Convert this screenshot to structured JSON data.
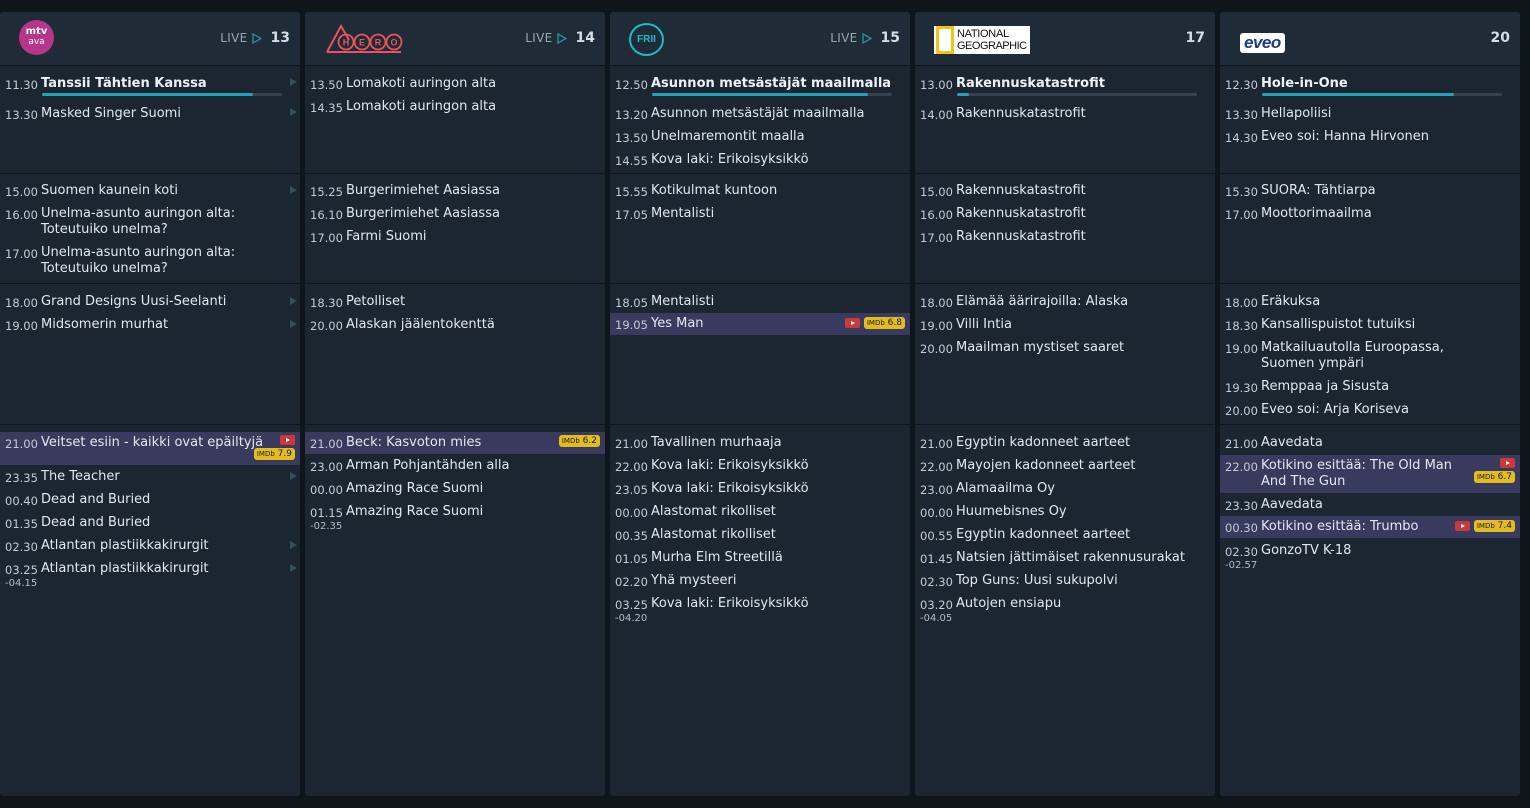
{
  "channels": [
    {
      "logo": "MTV Ava",
      "logo_lines": [
        "mtv",
        "ava"
      ],
      "live_label": "LIVE",
      "number": "13",
      "current": {
        "time": "11.30",
        "title": "Tanssii Tähtien Kanssa",
        "progress": 0.88
      },
      "programs": [
        {
          "time": "13.30",
          "title": "Masked Singer Suomi"
        },
        {
          "time": "15.00",
          "title": "Suomen kaunein koti"
        },
        {
          "time": "16.00",
          "title": "Unelma-asunto auringon alta: Toteutuiko unelma?"
        },
        {
          "time": "17.00",
          "title": "Unelma-asunto auringon alta: Toteutuiko unelma?"
        },
        {
          "time": "18.00",
          "title": "Grand Designs Uusi-Seelanti"
        },
        {
          "time": "19.00",
          "title": "Midsomerin murhat"
        },
        {
          "time": "21.00",
          "title": "Veitset esiin - kaikki ovat epäiltyjä",
          "imdb": "7.9"
        },
        {
          "time": "23.35",
          "title": "The Teacher"
        },
        {
          "time": "00.40",
          "title": "Dead and Buried"
        },
        {
          "time": "01.35",
          "title": "Dead and Buried"
        },
        {
          "time": "02.30",
          "title": "Atlantan plastiikkakirurgit"
        },
        {
          "time": "03.25",
          "title": "Atlantan plastiikkakirurgit"
        }
      ],
      "end_time": "-04.15"
    },
    {
      "logo": "HERO",
      "live_label": "LIVE",
      "number": "14",
      "programs": [
        {
          "time": "13.50",
          "title": "Lomakoti auringon alta"
        },
        {
          "time": "14.35",
          "title": "Lomakoti auringon alta"
        },
        {
          "time": "15.25",
          "title": "Burgerimiehet Aasiassa"
        },
        {
          "time": "16.10",
          "title": "Burgerimiehet Aasiassa"
        },
        {
          "time": "17.00",
          "title": "Farmi Suomi"
        },
        {
          "time": "18.30",
          "title": "Petolliset"
        },
        {
          "time": "20.00",
          "title": "Alaskan jäälentokenttä"
        },
        {
          "time": "21.00",
          "title": "Beck: Kasvoton mies",
          "imdb": "6.2"
        },
        {
          "time": "23.00",
          "title": "Arman Pohjantähden alla"
        },
        {
          "time": "00.00",
          "title": "Amazing Race Suomi"
        },
        {
          "time": "01.15",
          "title": "Amazing Race Suomi"
        }
      ],
      "end_time": "-02.35"
    },
    {
      "logo": "FRII",
      "live_label": "LIVE",
      "number": "15",
      "current": {
        "time": "12.50",
        "title": "Asunnon metsästäjät maailmalla",
        "progress": 0.9
      },
      "programs": [
        {
          "time": "13.20",
          "title": "Asunnon metsästäjät maailmalla"
        },
        {
          "time": "13.50",
          "title": "Unelmaremontit maalla"
        },
        {
          "time": "14.55",
          "title": "Kova laki: Erikoisyksikkö"
        },
        {
          "time": "15.55",
          "title": "Kotikulmat kuntoon"
        },
        {
          "time": "17.05",
          "title": "Mentalisti"
        },
        {
          "time": "18.05",
          "title": "Mentalisti"
        },
        {
          "time": "19.05",
          "title": "Yes Man",
          "imdb": "6.8"
        },
        {
          "time": "21.00",
          "title": "Tavallinen murhaaja"
        },
        {
          "time": "22.00",
          "title": "Kova laki: Erikoisyksikkö"
        },
        {
          "time": "23.05",
          "title": "Kova laki: Erikoisyksikkö"
        },
        {
          "time": "00.00",
          "title": "Alastomat rikolliset"
        },
        {
          "time": "00.35",
          "title": "Alastomat rikolliset"
        },
        {
          "time": "01.05",
          "title": "Murha Elm Streetillä"
        },
        {
          "time": "02.20",
          "title": "Yhä mysteeri"
        },
        {
          "time": "03.25",
          "title": "Kova laki: Erikoisyksikkö"
        }
      ],
      "end_time": "-04.20"
    },
    {
      "logo": "National Geographic",
      "logo_lines": [
        "NATIONAL",
        "GEOGRAPHIC"
      ],
      "number": "17",
      "current": {
        "time": "13.00",
        "title": "Rakennuskatastrofit",
        "progress": 0.05
      },
      "programs": [
        {
          "time": "14.00",
          "title": "Rakennuskatastrofit"
        },
        {
          "time": "15.00",
          "title": "Rakennuskatastrofit"
        },
        {
          "time": "16.00",
          "title": "Rakennuskatastrofit"
        },
        {
          "time": "17.00",
          "title": "Rakennuskatastrofit"
        },
        {
          "time": "18.00",
          "title": "Elämää äärirajoilla: Alaska"
        },
        {
          "time": "19.00",
          "title": "Villi Intia"
        },
        {
          "time": "20.00",
          "title": "Maailman mystiset saaret"
        },
        {
          "time": "21.00",
          "title": "Egyptin kadonneet aarteet"
        },
        {
          "time": "22.00",
          "title": "Mayojen kadonneet aarteet"
        },
        {
          "time": "23.00",
          "title": "Alamaailma Oy"
        },
        {
          "time": "00.00",
          "title": "Huumebisnes Oy"
        },
        {
          "time": "00.55",
          "title": "Egyptin kadonneet aarteet"
        },
        {
          "time": "01.45",
          "title": "Natsien jättimäiset rakennusurakat"
        },
        {
          "time": "02.30",
          "title": "Top Guns: Uusi sukupolvi"
        },
        {
          "time": "03.20",
          "title": "Autojen ensiapu"
        }
      ],
      "end_time": "-04.05"
    },
    {
      "logo": "eveo",
      "number": "20",
      "current": {
        "time": "12.30",
        "title": "Hole-in-One",
        "progress": 0.8
      },
      "programs": [
        {
          "time": "13.30",
          "title": "Hellapoliisi"
        },
        {
          "time": "14.30",
          "title": "Eveo soi: Hanna Hirvonen"
        },
        {
          "time": "15.30",
          "title": "SUORA: Tähtiarpa"
        },
        {
          "time": "17.00",
          "title": "Moottorimaailma"
        },
        {
          "time": "18.00",
          "title": "Eräkuksa"
        },
        {
          "time": "18.30",
          "title": "Kansallispuistot tutuiksi"
        },
        {
          "time": "19.00",
          "title": "Matkailuautolla Euroopassa, Suomen ympäri"
        },
        {
          "time": "19.30",
          "title": "Remppaa ja Sisusta"
        },
        {
          "time": "20.00",
          "title": "Eveo soi: Arja Koriseva"
        },
        {
          "time": "21.00",
          "title": "Aavedata"
        },
        {
          "time": "22.00",
          "title": "Kotikino esittää: The Old Man And The Gun",
          "imdb": "6.7"
        },
        {
          "time": "23.30",
          "title": "Aavedata"
        },
        {
          "time": "00.30",
          "title": "Kotikino esittää: Trumbo",
          "imdb": "7.4"
        },
        {
          "time": "02.30",
          "title": "GonzoTV K-18"
        }
      ],
      "end_time": "-02.57"
    }
  ],
  "imdb_label": "IMDb",
  "colors": {
    "page_bg": "#0e151b",
    "column_bg": "#1b2631",
    "header_bg": "#1f2b36",
    "highlight_bg": "#393b5e",
    "progress": "#1fa3b8",
    "imdb": "#e3bd1f",
    "youtube": "#c73a3a"
  }
}
